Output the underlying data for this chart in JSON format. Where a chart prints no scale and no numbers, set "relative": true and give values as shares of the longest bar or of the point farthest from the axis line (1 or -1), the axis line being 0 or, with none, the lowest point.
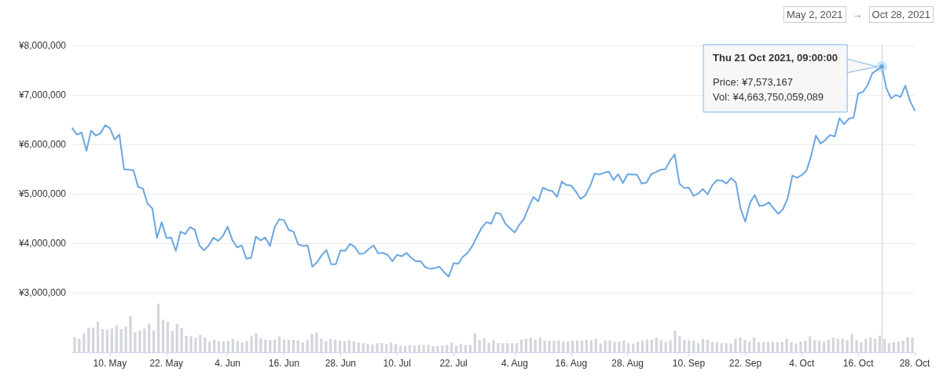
{
  "chart_data": [
    {
      "type": "line",
      "color": "#6aa6df",
      "marker": "none",
      "line_style": "solid",
      "grid": "y",
      "xlim": [
        "2021-05-02",
        "2021-10-28"
      ],
      "xticks": [
        {
          "value": "2021-05-10",
          "label": "10. May"
        },
        {
          "value": "2021-05-22",
          "label": "22. May"
        },
        {
          "value": "2021-06-04",
          "label": "4. Jun"
        },
        {
          "value": "2021-06-16",
          "label": "16. Jun"
        },
        {
          "value": "2021-06-28",
          "label": "28. Jun"
        },
        {
          "value": "2021-07-10",
          "label": "10. Jul"
        },
        {
          "value": "2021-07-22",
          "label": "22. Jul"
        },
        {
          "value": "2021-08-04",
          "label": "4. Aug"
        },
        {
          "value": "2021-08-16",
          "label": "16. Aug"
        },
        {
          "value": "2021-08-28",
          "label": "28. Aug"
        },
        {
          "value": "2021-09-10",
          "label": "10. Sep"
        },
        {
          "value": "2021-09-22",
          "label": "22. Sep"
        },
        {
          "value": "2021-10-04",
          "label": "4. Oct"
        },
        {
          "value": "2021-10-16",
          "label": "16. Oct"
        },
        {
          "value": "2021-10-28",
          "label": "28. Oct"
        }
      ],
      "ylim": [
        1800000,
        8000000
      ],
      "yticks": [
        {
          "value": 3000000,
          "label": "¥3,000,000"
        },
        {
          "value": 4000000,
          "label": "¥4,000,000"
        },
        {
          "value": 5000000,
          "label": "¥5,000,000"
        },
        {
          "value": 6000000,
          "label": "¥6,000,000"
        },
        {
          "value": 7000000,
          "label": "¥7,000,000"
        },
        {
          "value": 8000000,
          "label": "¥8,000,000"
        }
      ],
      "ref_lines": [
        {
          "axis": "x",
          "value": "2021-10-21",
          "color": "#cccccc"
        }
      ],
      "annotations": [
        "May 2, 2021",
        "→",
        "Oct 28, 2021",
        {
          "text": "Thu 21 Oct 2021, 09:00:00",
          "x": "2021-10-21",
          "y": 7573167
        },
        "Price: ¥7,573,167",
        "Vol: ¥4,663,750,059,089"
      ],
      "x": [
        "2021-05-02",
        "2021-05-03",
        "2021-05-04",
        "2021-05-05",
        "2021-05-06",
        "2021-05-07",
        "2021-05-08",
        "2021-05-09",
        "2021-05-10",
        "2021-05-11",
        "2021-05-12",
        "2021-05-13",
        "2021-05-14",
        "2021-05-15",
        "2021-05-16",
        "2021-05-17",
        "2021-05-18",
        "2021-05-19",
        "2021-05-20",
        "2021-05-21",
        "2021-05-22",
        "2021-05-23",
        "2021-05-24",
        "2021-05-25",
        "2021-05-26",
        "2021-05-27",
        "2021-05-28",
        "2021-05-29",
        "2021-05-30",
        "2021-05-31",
        "2021-06-01",
        "2021-06-02",
        "2021-06-03",
        "2021-06-04",
        "2021-06-05",
        "2021-06-06",
        "2021-06-07",
        "2021-06-08",
        "2021-06-09",
        "2021-06-10",
        "2021-06-11",
        "2021-06-12",
        "2021-06-13",
        "2021-06-14",
        "2021-06-15",
        "2021-06-16",
        "2021-06-17",
        "2021-06-18",
        "2021-06-19",
        "2021-06-20",
        "2021-06-21",
        "2021-06-22",
        "2021-06-23",
        "2021-06-24",
        "2021-06-25",
        "2021-06-26",
        "2021-06-27",
        "2021-06-28",
        "2021-06-29",
        "2021-06-30",
        "2021-07-01",
        "2021-07-02",
        "2021-07-03",
        "2021-07-04",
        "2021-07-05",
        "2021-07-06",
        "2021-07-07",
        "2021-07-08",
        "2021-07-09",
        "2021-07-10",
        "2021-07-11",
        "2021-07-12",
        "2021-07-13",
        "2021-07-14",
        "2021-07-15",
        "2021-07-16",
        "2021-07-17",
        "2021-07-18",
        "2021-07-19",
        "2021-07-20",
        "2021-07-21",
        "2021-07-22",
        "2021-07-23",
        "2021-07-24",
        "2021-07-25",
        "2021-07-26",
        "2021-07-27",
        "2021-07-28",
        "2021-07-29",
        "2021-07-30",
        "2021-07-31",
        "2021-08-01",
        "2021-08-02",
        "2021-08-03",
        "2021-08-04",
        "2021-08-05",
        "2021-08-06",
        "2021-08-07",
        "2021-08-08",
        "2021-08-09",
        "2021-08-10",
        "2021-08-11",
        "2021-08-12",
        "2021-08-13",
        "2021-08-14",
        "2021-08-15",
        "2021-08-16",
        "2021-08-17",
        "2021-08-18",
        "2021-08-19",
        "2021-08-20",
        "2021-08-21",
        "2021-08-22",
        "2021-08-23",
        "2021-08-24",
        "2021-08-25",
        "2021-08-26",
        "2021-08-27",
        "2021-08-28",
        "2021-08-29",
        "2021-08-30",
        "2021-08-31",
        "2021-09-01",
        "2021-09-02",
        "2021-09-03",
        "2021-09-04",
        "2021-09-05",
        "2021-09-06",
        "2021-09-07",
        "2021-09-08",
        "2021-09-09",
        "2021-09-10",
        "2021-09-11",
        "2021-09-12",
        "2021-09-13",
        "2021-09-14",
        "2021-09-15",
        "2021-09-16",
        "2021-09-17",
        "2021-09-18",
        "2021-09-19",
        "2021-09-20",
        "2021-09-21",
        "2021-09-22",
        "2021-09-23",
        "2021-09-24",
        "2021-09-25",
        "2021-09-26",
        "2021-09-27",
        "2021-09-28",
        "2021-09-29",
        "2021-09-30",
        "2021-10-01",
        "2021-10-02",
        "2021-10-03",
        "2021-10-04",
        "2021-10-05",
        "2021-10-06",
        "2021-10-07",
        "2021-10-08",
        "2021-10-09",
        "2021-10-10",
        "2021-10-11",
        "2021-10-12",
        "2021-10-13",
        "2021-10-14",
        "2021-10-15",
        "2021-10-16",
        "2021-10-17",
        "2021-10-18",
        "2021-10-19",
        "2021-10-21",
        "2021-10-22",
        "2021-10-23",
        "2021-10-24",
        "2021-10-25",
        "2021-10-26",
        "2021-10-27",
        "2021-10-28"
      ],
      "values": [
        6330000,
        6200000,
        6240000,
        5870000,
        6280000,
        6180000,
        6230000,
        6390000,
        6330000,
        6100000,
        6200000,
        5500000,
        5490000,
        5480000,
        5140000,
        5110000,
        4800000,
        4710000,
        4110000,
        4430000,
        4110000,
        4120000,
        3850000,
        4240000,
        4190000,
        4330000,
        4280000,
        3960000,
        3860000,
        3960000,
        4120000,
        4050000,
        4150000,
        4340000,
        4070000,
        3920000,
        3960000,
        3690000,
        3710000,
        4140000,
        4060000,
        4120000,
        3950000,
        4330000,
        4490000,
        4470000,
        4270000,
        4240000,
        3980000,
        3950000,
        3960000,
        3530000,
        3620000,
        3760000,
        3870000,
        3580000,
        3580000,
        3860000,
        3850000,
        3990000,
        3930000,
        3790000,
        3800000,
        3890000,
        3960000,
        3800000,
        3810000,
        3770000,
        3640000,
        3770000,
        3740000,
        3810000,
        3710000,
        3640000,
        3640000,
        3520000,
        3490000,
        3500000,
        3530000,
        3420000,
        3330000,
        3600000,
        3590000,
        3730000,
        3810000,
        3950000,
        4140000,
        4320000,
        4430000,
        4400000,
        4620000,
        4600000,
        4400000,
        4310000,
        4220000,
        4380000,
        4500000,
        4740000,
        4940000,
        4850000,
        5130000,
        5080000,
        5060000,
        4940000,
        5250000,
        5180000,
        5170000,
        5050000,
        4900000,
        4970000,
        5150000,
        5410000,
        5390000,
        5430000,
        5450000,
        5280000,
        5400000,
        5220000,
        5400000,
        5390000,
        5390000,
        5210000,
        5230000,
        5400000,
        5440000,
        5490000,
        5500000,
        5670000,
        5800000,
        5210000,
        5120000,
        5130000,
        4960000,
        5010000,
        5100000,
        4990000,
        5180000,
        5280000,
        5270000,
        5210000,
        5320000,
        5230000,
        4700000,
        4440000,
        4820000,
        4980000,
        4760000,
        4770000,
        4830000,
        4710000,
        4600000,
        4690000,
        4910000,
        5370000,
        5330000,
        5380000,
        5470000,
        5770000,
        6180000,
        6020000,
        6090000,
        6190000,
        6160000,
        6530000,
        6410000,
        6520000,
        6540000,
        7030000,
        7060000,
        7200000,
        7440000,
        7573167,
        7130000,
        6930000,
        7000000,
        6960000,
        7190000,
        6880000,
        6690000
      ]
    },
    {
      "type": "bar",
      "relative": true,
      "color": "#d3d6dc",
      "tick_labels": false,
      "categories": [
        null,
        null,
        null,
        null,
        null,
        null,
        null,
        null,
        null,
        null,
        null,
        null,
        null,
        null,
        null,
        null,
        null,
        null,
        null,
        null,
        null,
        null,
        null,
        null,
        null,
        null,
        null,
        null,
        null,
        null,
        null,
        null,
        null,
        null,
        null,
        null,
        null,
        null,
        null,
        null,
        null,
        null,
        null,
        null,
        null,
        null,
        null,
        null,
        null,
        null,
        null,
        null,
        null,
        null,
        null,
        null,
        null,
        null,
        null,
        null,
        null,
        null,
        null,
        null,
        null,
        null,
        null,
        null,
        null,
        null,
        null,
        null,
        null,
        null,
        null,
        null,
        null,
        null,
        null,
        null,
        null,
        null,
        null,
        null,
        null,
        null,
        null,
        null,
        null,
        null,
        null,
        null,
        null,
        null,
        null,
        null,
        null,
        null,
        null,
        null,
        null,
        null,
        null,
        null,
        null,
        null,
        null,
        null,
        null,
        null,
        null,
        null,
        null,
        null,
        null,
        null,
        null,
        null,
        null,
        null,
        null,
        null,
        null,
        null,
        null,
        null,
        null,
        null,
        null,
        null,
        null,
        null,
        null,
        null,
        null,
        null,
        null,
        null,
        null,
        null,
        null,
        null,
        null,
        null,
        null,
        null,
        null,
        null,
        null,
        null,
        null,
        null,
        null,
        null,
        null,
        null,
        null,
        null,
        null,
        null,
        null,
        null,
        null,
        null,
        null,
        null,
        null,
        null,
        null,
        null,
        null,
        null,
        null,
        null,
        null,
        null,
        null,
        null,
        null,
        null,
        null
      ],
      "values": [
        0.31,
        0.28,
        0.39,
        0.5,
        0.51,
        0.63,
        0.48,
        0.47,
        0.49,
        0.55,
        0.48,
        0.53,
        0.74,
        0.41,
        0.45,
        0.49,
        0.59,
        0.45,
        1,
        0.67,
        0.63,
        0.44,
        0.59,
        0.5,
        0.34,
        0.33,
        0.3,
        0.36,
        0.31,
        0.22,
        0.26,
        0.23,
        0.22,
        0.23,
        0.28,
        0.23,
        0.2,
        0.23,
        0.33,
        0.39,
        0.29,
        0.26,
        0.25,
        0.26,
        0.33,
        0.26,
        0.26,
        0.26,
        0.25,
        0.2,
        0.25,
        0.38,
        0.41,
        0.28,
        0.23,
        0.28,
        0.26,
        0.24,
        0.23,
        0.25,
        0.22,
        0.2,
        0.19,
        0.17,
        0.16,
        0.19,
        0.19,
        0.17,
        0.2,
        0.17,
        0.14,
        0.13,
        0.15,
        0.14,
        0.15,
        0.15,
        0.15,
        0.13,
        0.13,
        0.14,
        0.15,
        0.2,
        0.14,
        0.17,
        0.15,
        0.15,
        0.39,
        0.26,
        0.29,
        0.2,
        0.25,
        0.19,
        0.19,
        0.19,
        0.19,
        0.19,
        0.26,
        0.28,
        0.3,
        0.26,
        0.3,
        0.24,
        0.24,
        0.24,
        0.24,
        0.22,
        0.22,
        0.24,
        0.24,
        0.24,
        0.26,
        0.25,
        0.28,
        0.18,
        0.24,
        0.25,
        0.22,
        0.22,
        0.24,
        0.19,
        0.18,
        0.22,
        0.24,
        0.26,
        0.26,
        0.3,
        0.25,
        0.21,
        0.25,
        0.44,
        0.33,
        0.26,
        0.25,
        0.24,
        0.19,
        0.28,
        0.26,
        0.21,
        0.21,
        0.19,
        0.19,
        0.18,
        0.28,
        0.31,
        0.25,
        0.22,
        0.3,
        0.21,
        0.21,
        0.21,
        0.21,
        0.21,
        0.21,
        0.28,
        0.21,
        0.18,
        0.22,
        0.24,
        0.33,
        0.25,
        0.24,
        0.22,
        0.26,
        0.3,
        0.28,
        0.28,
        0.25,
        0.38,
        0.25,
        0.21,
        0.28,
        0.3,
        0.28,
        0.34,
        0.28,
        0.19,
        0.21,
        0.22,
        0.24,
        0.31,
        0.31
      ]
    }
  ]
}
